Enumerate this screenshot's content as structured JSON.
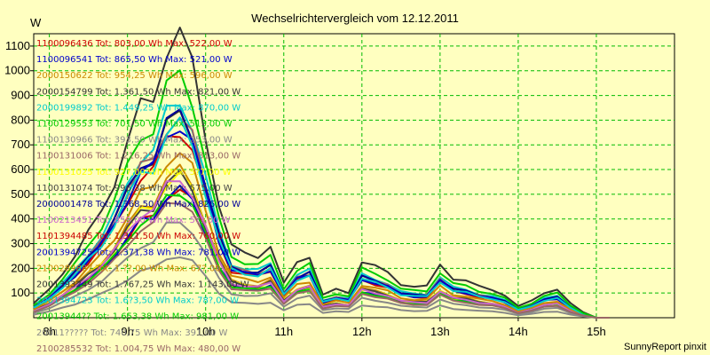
{
  "chart_data": {
    "type": "line",
    "title": "Wechselrichtervergleich vom 12.12.2011",
    "ylabel": "W",
    "xlabel": "",
    "ylim": [
      0,
      1150
    ],
    "xlim": [
      7.8,
      16.0
    ],
    "yticks": [
      100,
      200,
      300,
      400,
      500,
      600,
      700,
      800,
      900,
      1000,
      1100
    ],
    "xticks": [
      {
        "value": 8,
        "label": "8h"
      },
      {
        "value": 9,
        "label": "9h"
      },
      {
        "value": 10,
        "label": "10h"
      },
      {
        "value": 11,
        "label": "11h"
      },
      {
        "value": 12,
        "label": "12h"
      },
      {
        "value": 13,
        "label": "13h"
      },
      {
        "value": 14,
        "label": "14h"
      },
      {
        "value": 15,
        "label": "15h"
      }
    ],
    "grid": true,
    "legend_position": "top-left",
    "footer": "SunnyReport pinxit",
    "x": [
      7.8,
      8.0,
      8.17,
      8.33,
      8.5,
      8.67,
      8.83,
      9.0,
      9.17,
      9.33,
      9.5,
      9.67,
      9.83,
      10.0,
      10.17,
      10.33,
      10.5,
      10.67,
      10.83,
      11.0,
      11.17,
      11.33,
      11.5,
      11.67,
      11.83,
      12.0,
      12.17,
      12.33,
      12.5,
      12.67,
      12.83,
      13.0,
      13.17,
      13.33,
      13.5,
      13.67,
      13.83,
      14.0,
      14.17,
      14.33,
      14.5,
      14.67,
      14.83,
      15.0,
      15.17
    ],
    "profile": [
      0.05,
      0.1,
      0.16,
      0.22,
      0.3,
      0.38,
      0.48,
      0.62,
      0.75,
      0.78,
      0.95,
      1.0,
      0.9,
      0.65,
      0.4,
      0.25,
      0.23,
      0.22,
      0.25,
      0.12,
      0.2,
      0.22,
      0.08,
      0.1,
      0.09,
      0.2,
      0.18,
      0.16,
      0.12,
      0.11,
      0.11,
      0.19,
      0.14,
      0.13,
      0.11,
      0.1,
      0.08,
      0.04,
      0.06,
      0.09,
      0.1,
      0.05,
      0.02,
      0.0,
      0.0
    ],
    "series": [
      {
        "id": "1100096436",
        "total": "803,00 Wh",
        "max": "522,00 W",
        "color": "#CC0000",
        "peak": 522
      },
      {
        "id": "1100096541",
        "total": "865,50 Wh",
        "max": "521,00 W",
        "color": "#0000CC",
        "peak": 521
      },
      {
        "id": "2000150622",
        "total": "954,25 Wh",
        "max": "596,00 W",
        "color": "#CC8800",
        "peak": 596
      },
      {
        "id": "2000154799",
        "total": "1.361,50 Wh",
        "max": "821,00 W",
        "color": "#333333",
        "peak": 821
      },
      {
        "id": "2000199892",
        "total": "1.449,25 Wh",
        "max": "870,00 W",
        "color": "#00CCCC",
        "peak": 870
      },
      {
        "id": "1100129553",
        "total": "701,50 Wh",
        "max": "513,00 W",
        "color": "#00CC00",
        "peak": 513
      },
      {
        "id": "1100130966",
        "total": "393,50 Wh",
        "max": "253,00 W",
        "color": "#888888",
        "peak": 253
      },
      {
        "id": "1100131006",
        "total": "1.216,25 Wh",
        "max": "813,00 W",
        "color": "#996666",
        "peak": 813
      },
      {
        "id": "1100131025",
        "total": "927,00 Wh",
        "max": "5?7,00 W",
        "color": "#FFFF00",
        "peak": 575
      },
      {
        "id": "1100131074",
        "total": "996,38 Wh",
        "max": "575,00 W",
        "color": "#444444",
        "peak": 575
      },
      {
        "id": "2000001478",
        "total": "1.368,50 Wh",
        "max": "826,00 W",
        "color": "#000099",
        "peak": 826
      },
      {
        "id": "1100213451",
        "total": "859,00 Wh",
        "max": "5??,00 W",
        "color": "#CC66CC",
        "peak": 560
      },
      {
        "id": "1101394485",
        "total": "1.311,50 Wh",
        "max": "760,00 W",
        "color": "#CC0000",
        "peak": 760
      },
      {
        "id": "2001394725",
        "total": "1.371,38 Wh",
        "max": "781,00 W",
        "color": "#0000CC",
        "peak": 781
      },
      {
        "id": "2100289887",
        "total": "1.??,00 Wh",
        "max": "67?,00 W",
        "color": "#CC8800",
        "peak": 670
      },
      {
        "id": "2001393249",
        "total": "1.767,25 Wh",
        "max": "1.143,00 W",
        "color": "#333333",
        "peak": 1143
      },
      {
        "id": "2001394723",
        "total": "1.6?3,50 Wh",
        "max": "78?,00 W",
        "color": "#00CCCC",
        "peak": 780
      },
      {
        "id": "20013944??",
        "total": "1.653,38 Wh",
        "max": "981,00 W",
        "color": "#00CC00",
        "peak": 981
      },
      {
        "id": "20011?????",
        "total": "740,75 Wh",
        "max": "391,00 W",
        "color": "#888888",
        "peak": 391
      },
      {
        "id": "2100285532",
        "total": "1.004,75 Wh",
        "max": "480,00 W",
        "color": "#996666",
        "peak": 480
      }
    ]
  }
}
